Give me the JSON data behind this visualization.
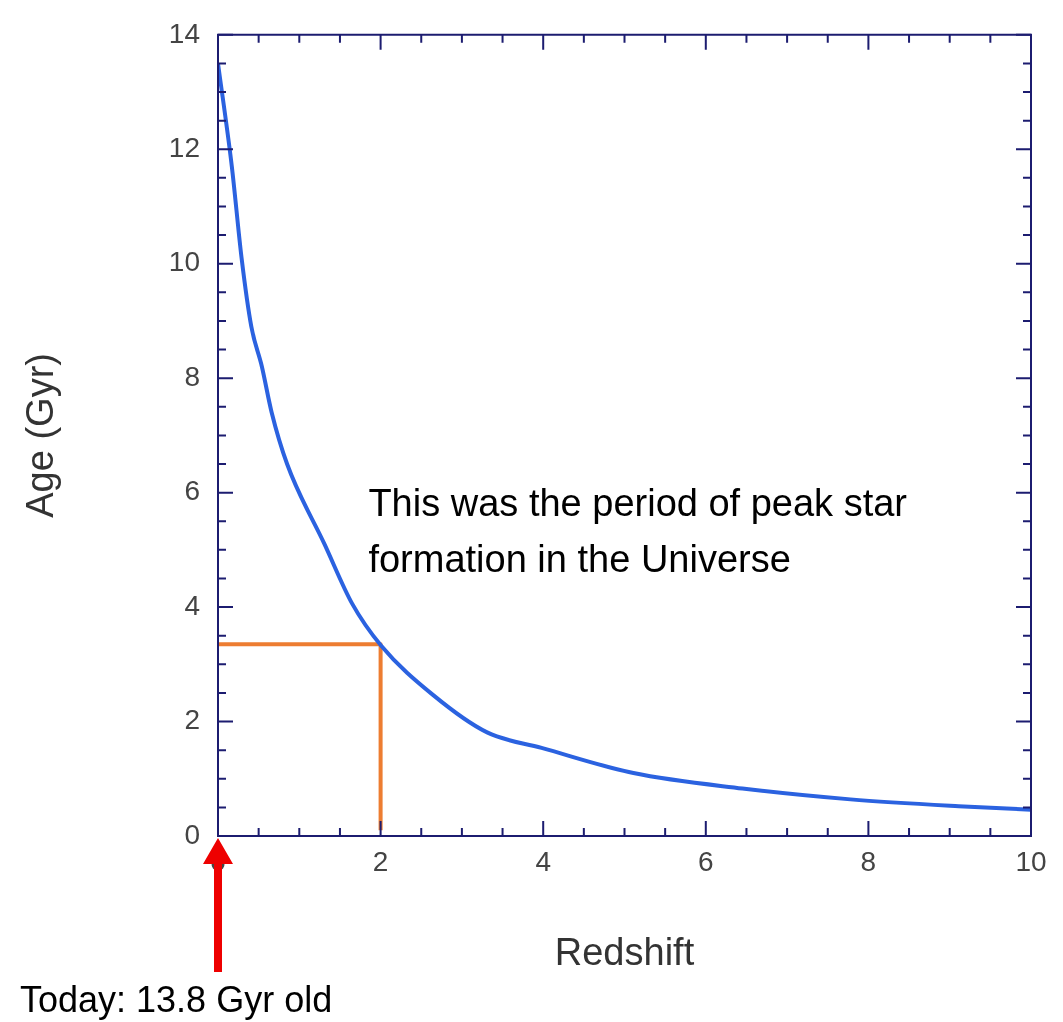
{
  "chart_data": {
    "type": "line",
    "xlabel": "Redshift",
    "ylabel": "Age (Gyr)",
    "xlim": [
      0,
      10
    ],
    "ylim": [
      0,
      14
    ],
    "xticks": [
      0,
      {
        "value": 0.5,
        "label": null
      },
      {
        "value": 1,
        "label": null
      },
      {
        "value": 1.5,
        "label": null
      },
      2,
      {
        "value": 2.5,
        "label": null
      },
      {
        "value": 3,
        "label": null
      },
      {
        "value": 3.5,
        "label": null
      },
      4,
      {
        "value": 4.5,
        "label": null
      },
      {
        "value": 5,
        "label": null
      },
      {
        "value": 5.5,
        "label": null
      },
      6,
      {
        "value": 6.5,
        "label": null
      },
      {
        "value": 7,
        "label": null
      },
      {
        "value": 7.5,
        "label": null
      },
      8,
      {
        "value": 8.5,
        "label": null
      },
      {
        "value": 9,
        "label": null
      },
      {
        "value": 9.5,
        "label": null
      },
      10
    ],
    "yticks": [
      0,
      {
        "value": 0.5,
        "label": null
      },
      {
        "value": 1,
        "label": null
      },
      {
        "value": 1.5,
        "label": null
      },
      2,
      {
        "value": 2.5,
        "label": null
      },
      {
        "value": 3,
        "label": null
      },
      {
        "value": 3.5,
        "label": null
      },
      4,
      {
        "value": 4.5,
        "label": null
      },
      {
        "value": 5,
        "label": null
      },
      {
        "value": 5.5,
        "label": null
      },
      6,
      {
        "value": 6.5,
        "label": null
      },
      {
        "value": 7,
        "label": null
      },
      {
        "value": 7.5,
        "label": null
      },
      8,
      {
        "value": 8.5,
        "label": null
      },
      {
        "value": 9,
        "label": null
      },
      {
        "value": 9.5,
        "label": null
      },
      10,
      {
        "value": 10.5,
        "label": null
      },
      {
        "value": 11,
        "label": null
      },
      {
        "value": 11.5,
        "label": null
      },
      12,
      {
        "value": 12.5,
        "label": null
      },
      {
        "value": 13,
        "label": null
      },
      {
        "value": 13.5,
        "label": null
      },
      14
    ],
    "grid": false,
    "legend": false,
    "marker": "none",
    "line_style": "solid",
    "series": [
      {
        "color": "#2b62e0",
        "x": [
          0,
          0.17,
          0.29,
          0.41,
          0.54,
          0.66,
          0.85,
          1.31,
          1.65,
          2.01,
          2.64,
          3.31,
          3.98,
          5.11,
          6.45,
          7.78,
          9.11,
          10
        ],
        "values": [
          13.5,
          11.7,
          10.1,
          8.9,
          8.2,
          7.4,
          6.5,
          5.1,
          4.06,
          3.32,
          2.47,
          1.81,
          1.54,
          1.1,
          0.83,
          0.64,
          0.52,
          0.46
        ]
      },
      {
        "type": "line",
        "color": "#ed7d31",
        "x": [
          0,
          2,
          2
        ],
        "values": [
          3.35,
          3.35,
          0.1
        ]
      }
    ],
    "annotations": [
      "This was the period of peak star formation in the Universe",
      "Today: 13.8 Gyr old"
    ]
  }
}
